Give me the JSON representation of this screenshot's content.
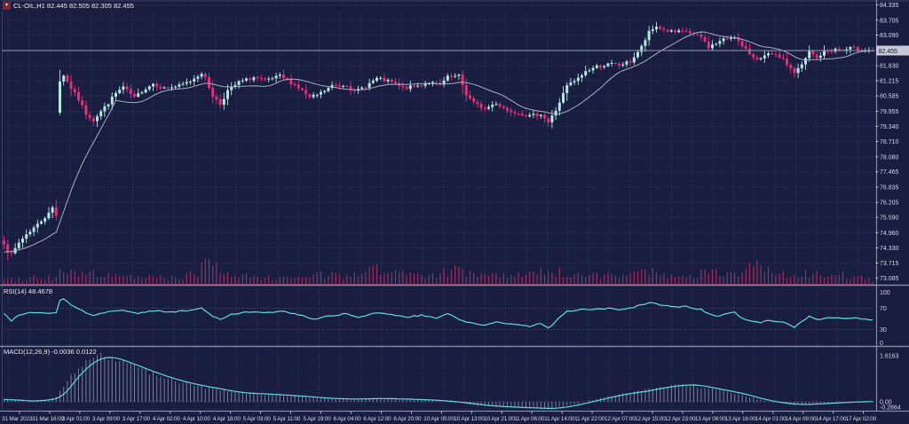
{
  "header": {
    "marker": "▼",
    "title": "CL-OIL,H1 82.445 82.505 82.305 82.455"
  },
  "indicators": {
    "rsi": {
      "label": "RSI(14) 48.4678",
      "current": 48.4678,
      "levels": [
        100,
        70,
        30,
        0
      ]
    },
    "macd": {
      "label": "MACD(12,26,9) -0.0036 0.0122",
      "current_main": -0.0036,
      "current_signal": 0.0122
    }
  },
  "axes": {
    "price_ticks": [
      "84.335",
      "83.705",
      "83.090",
      "81.830",
      "81.215",
      "80.585",
      "79.955",
      "79.340",
      "78.710",
      "78.080",
      "77.465",
      "76.835",
      "76.205",
      "75.590",
      "74.960",
      "74.330",
      "73.715",
      "73.085"
    ],
    "grid_levels": [
      84.335,
      83.705,
      83.09,
      82.475,
      81.83,
      81.215,
      80.585,
      79.955,
      79.34,
      78.71,
      78.08,
      77.465,
      76.835,
      76.205,
      75.59,
      74.96,
      74.33,
      73.715,
      73.085
    ],
    "current_price": "82.455",
    "rsi_ticks": [
      "100",
      "70",
      "30",
      "0"
    ],
    "macd_ticks": [
      "1.6163",
      "0.00",
      "-0.2864"
    ],
    "time_labels": [
      "31 Mar 2023",
      "31 Mar 16:00",
      "3 Apr 01:00",
      "3 Apr 09:00",
      "3 Apr 17:00",
      "4 Apr 02:00",
      "4 Apr 10:00",
      "4 Apr 18:00",
      "5 Apr 03:00",
      "5 Apr 11:00",
      "5 Apr 19:00",
      "6 Apr 04:00",
      "6 Apr 12:00",
      "6 Apr 20:00",
      "10 Apr 05:00",
      "10 Apr 13:00",
      "10 Apr 21:00",
      "11 Apr 06:00",
      "11 Apr 14:00",
      "11 Apr 22:00",
      "12 Apr 07:00",
      "12 Apr 15:00",
      "12 Apr 23:00",
      "13 Apr 08:00",
      "13 Apr 16:00",
      "14 Apr 01:00",
      "14 Apr 09:00",
      "14 Apr 17:00",
      "17 Apr 02:00"
    ]
  },
  "colors": {
    "background": "#191d3f",
    "grid": "#363c6b",
    "level_line": "#4a5180",
    "bull": "#b4e6e2",
    "bear": "#e62e78",
    "ma": "#a7aec2",
    "bid_line": "#8e96aa",
    "volume": "#92305f",
    "indicator_line": "#62d9e2",
    "histogram": "#a9aed2",
    "separator": "#838aa4",
    "axis_text": "#d4d9e8",
    "tag_bg": "#c6cad6",
    "tag_text": "#10142e",
    "border": "#3a4068"
  },
  "chart_data": [
    {
      "type": "candlestick",
      "pane": "main",
      "symbol": "CL-OIL",
      "timeframe": "H1",
      "ohlc_current": {
        "open": "82.445",
        "high": "82.505",
        "low": "82.305",
        "close": "82.455"
      },
      "bars": 234,
      "price_range": [
        73.085,
        84.335
      ],
      "bid_price": 82.455,
      "ma_period": 16,
      "seed": 7,
      "close_jitter": 0.07,
      "wick_base": 0.1,
      "gaps": [
        {
          "index": 15,
          "open": 79.9
        }
      ],
      "close_waypoints": [
        [
          0,
          74.55
        ],
        [
          1,
          74.2
        ],
        [
          2,
          74.05
        ],
        [
          3,
          74.3
        ],
        [
          4,
          74.55
        ],
        [
          6,
          74.9
        ],
        [
          9,
          75.3
        ],
        [
          12,
          75.75
        ],
        [
          13,
          76.0
        ],
        [
          14,
          75.7
        ],
        [
          15,
          81.2
        ],
        [
          16,
          81.45
        ],
        [
          18,
          80.9
        ],
        [
          20,
          80.45
        ],
        [
          22,
          79.85
        ],
        [
          24,
          79.6
        ],
        [
          26,
          79.95
        ],
        [
          28,
          80.3
        ],
        [
          30,
          80.7
        ],
        [
          32,
          80.95
        ],
        [
          35,
          80.5
        ],
        [
          37,
          80.8
        ],
        [
          40,
          81.1
        ],
        [
          43,
          80.9
        ],
        [
          47,
          81.0
        ],
        [
          50,
          81.2
        ],
        [
          53,
          81.55
        ],
        [
          54,
          81.3
        ],
        [
          56,
          80.6
        ],
        [
          58,
          80.25
        ],
        [
          60,
          80.8
        ],
        [
          63,
          81.15
        ],
        [
          67,
          81.35
        ],
        [
          70,
          81.2
        ],
        [
          74,
          81.4
        ],
        [
          78,
          81.05
        ],
        [
          80,
          80.8
        ],
        [
          82,
          80.5
        ],
        [
          85,
          80.7
        ],
        [
          88,
          81.0
        ],
        [
          92,
          81.05
        ],
        [
          94,
          80.75
        ],
        [
          97,
          81.0
        ],
        [
          100,
          81.3
        ],
        [
          104,
          81.15
        ],
        [
          107,
          80.9
        ],
        [
          111,
          81.0
        ],
        [
          114,
          81.15
        ],
        [
          117,
          81.05
        ],
        [
          119,
          81.35
        ],
        [
          122,
          81.4
        ],
        [
          124,
          80.65
        ],
        [
          126,
          80.3
        ],
        [
          129,
          80.05
        ],
        [
          132,
          80.3
        ],
        [
          135,
          80.0
        ],
        [
          138,
          79.9
        ],
        [
          141,
          79.75
        ],
        [
          144,
          79.85
        ],
        [
          146,
          79.5
        ],
        [
          148,
          80.0
        ],
        [
          151,
          81.0
        ],
        [
          154,
          81.3
        ],
        [
          156,
          81.6
        ],
        [
          159,
          81.8
        ],
        [
          163,
          81.9
        ],
        [
          165,
          81.85
        ],
        [
          168,
          82.0
        ],
        [
          171,
          82.6
        ],
        [
          173,
          83.2
        ],
        [
          175,
          83.45
        ],
        [
          177,
          83.3
        ],
        [
          180,
          83.2
        ],
        [
          183,
          83.25
        ],
        [
          185,
          83.1
        ],
        [
          187,
          83.0
        ],
        [
          189,
          82.6
        ],
        [
          191,
          82.75
        ],
        [
          193,
          82.9
        ],
        [
          196,
          83.05
        ],
        [
          198,
          82.6
        ],
        [
          201,
          82.2
        ],
        [
          203,
          82.1
        ],
        [
          205,
          82.3
        ],
        [
          208,
          82.2
        ],
        [
          210,
          81.9
        ],
        [
          212,
          81.55
        ],
        [
          214,
          81.85
        ],
        [
          216,
          82.4
        ],
        [
          218,
          82.15
        ],
        [
          220,
          82.4
        ],
        [
          223,
          82.5
        ],
        [
          225,
          82.45
        ],
        [
          227,
          82.55
        ],
        [
          230,
          82.5
        ],
        [
          233,
          82.455
        ]
      ],
      "volume_waypoints": [
        [
          0,
          0.15
        ],
        [
          5,
          0.2
        ],
        [
          10,
          0.3
        ],
        [
          14,
          0.25
        ],
        [
          15,
          0.55
        ],
        [
          17,
          0.5
        ],
        [
          20,
          0.4
        ],
        [
          24,
          0.45
        ],
        [
          28,
          0.35
        ],
        [
          32,
          0.3
        ],
        [
          36,
          0.25
        ],
        [
          40,
          0.3
        ],
        [
          44,
          0.25
        ],
        [
          48,
          0.3
        ],
        [
          52,
          0.5
        ],
        [
          54,
          1.0
        ],
        [
          56,
          0.7
        ],
        [
          58,
          0.5
        ],
        [
          62,
          0.35
        ],
        [
          66,
          0.3
        ],
        [
          70,
          0.25
        ],
        [
          75,
          0.2
        ],
        [
          80,
          0.3
        ],
        [
          85,
          0.35
        ],
        [
          90,
          0.3
        ],
        [
          95,
          0.35
        ],
        [
          100,
          0.6
        ],
        [
          103,
          0.5
        ],
        [
          107,
          0.4
        ],
        [
          110,
          0.35
        ],
        [
          115,
          0.3
        ],
        [
          119,
          0.5
        ],
        [
          122,
          0.55
        ],
        [
          125,
          0.45
        ],
        [
          128,
          0.4
        ],
        [
          132,
          0.45
        ],
        [
          136,
          0.35
        ],
        [
          140,
          0.3
        ],
        [
          143,
          0.45
        ],
        [
          146,
          0.5
        ],
        [
          150,
          0.45
        ],
        [
          154,
          0.35
        ],
        [
          158,
          0.3
        ],
        [
          162,
          0.35
        ],
        [
          166,
          0.3
        ],
        [
          170,
          0.5
        ],
        [
          173,
          0.55
        ],
        [
          176,
          0.45
        ],
        [
          180,
          0.35
        ],
        [
          184,
          0.3
        ],
        [
          188,
          0.45
        ],
        [
          191,
          0.5
        ],
        [
          194,
          0.4
        ],
        [
          198,
          0.45
        ],
        [
          200,
          0.85
        ],
        [
          202,
          0.7
        ],
        [
          204,
          0.5
        ],
        [
          208,
          0.35
        ],
        [
          212,
          0.4
        ],
        [
          216,
          0.45
        ],
        [
          219,
          0.5
        ],
        [
          222,
          0.4
        ],
        [
          226,
          0.3
        ],
        [
          230,
          0.25
        ],
        [
          233,
          0.2
        ]
      ]
    },
    {
      "type": "line",
      "pane": "rsi",
      "range": [
        0,
        100
      ],
      "levels": [
        70,
        30
      ],
      "jitter": 1.2,
      "waypoints": [
        [
          0,
          60
        ],
        [
          2,
          47
        ],
        [
          4,
          58
        ],
        [
          8,
          62
        ],
        [
          12,
          60
        ],
        [
          14,
          62
        ],
        [
          15,
          85
        ],
        [
          16,
          88
        ],
        [
          18,
          76
        ],
        [
          20,
          70
        ],
        [
          22,
          62
        ],
        [
          24,
          56
        ],
        [
          27,
          62
        ],
        [
          30,
          66
        ],
        [
          33,
          65
        ],
        [
          36,
          61
        ],
        [
          40,
          65
        ],
        [
          45,
          63
        ],
        [
          50,
          66
        ],
        [
          53,
          70
        ],
        [
          56,
          55
        ],
        [
          58,
          49
        ],
        [
          61,
          58
        ],
        [
          65,
          63
        ],
        [
          70,
          62
        ],
        [
          75,
          64
        ],
        [
          80,
          56
        ],
        [
          83,
          49
        ],
        [
          87,
          55
        ],
        [
          92,
          60
        ],
        [
          95,
          53
        ],
        [
          100,
          62
        ],
        [
          104,
          58
        ],
        [
          108,
          53
        ],
        [
          112,
          57
        ],
        [
          116,
          52
        ],
        [
          119,
          60
        ],
        [
          123,
          46
        ],
        [
          126,
          41
        ],
        [
          129,
          37
        ],
        [
          132,
          45
        ],
        [
          135,
          41
        ],
        [
          138,
          39
        ],
        [
          141,
          36
        ],
        [
          144,
          41
        ],
        [
          146,
          32
        ],
        [
          148,
          46
        ],
        [
          151,
          64
        ],
        [
          154,
          67
        ],
        [
          157,
          68
        ],
        [
          160,
          69
        ],
        [
          163,
          70
        ],
        [
          165,
          68
        ],
        [
          168,
          70
        ],
        [
          171,
          77
        ],
        [
          173,
          80
        ],
        [
          175,
          79
        ],
        [
          177,
          75
        ],
        [
          180,
          72
        ],
        [
          183,
          74
        ],
        [
          185,
          70
        ],
        [
          187,
          68
        ],
        [
          189,
          59
        ],
        [
          191,
          55
        ],
        [
          194,
          60
        ],
        [
          196,
          63
        ],
        [
          198,
          51
        ],
        [
          201,
          45
        ],
        [
          203,
          43
        ],
        [
          205,
          48
        ],
        [
          208,
          45
        ],
        [
          210,
          42
        ],
        [
          212,
          35
        ],
        [
          214,
          45
        ],
        [
          216,
          55
        ],
        [
          218,
          48
        ],
        [
          220,
          52
        ],
        [
          223,
          53
        ],
        [
          225,
          50
        ],
        [
          227,
          52
        ],
        [
          230,
          50
        ],
        [
          233,
          48.5
        ]
      ]
    },
    {
      "type": "line+histogram",
      "pane": "macd",
      "scale_max": 1.6163,
      "scale_min": -0.2864,
      "signal_smoothing": 5,
      "waypoints": [
        [
          0,
          0.08
        ],
        [
          3,
          0.05
        ],
        [
          6,
          0.02
        ],
        [
          9,
          0.05
        ],
        [
          12,
          0.1
        ],
        [
          14,
          0.18
        ],
        [
          16,
          0.55
        ],
        [
          18,
          0.9
        ],
        [
          20,
          1.15
        ],
        [
          22,
          1.38
        ],
        [
          24,
          1.52
        ],
        [
          26,
          1.58
        ],
        [
          28,
          1.55
        ],
        [
          30,
          1.47
        ],
        [
          33,
          1.32
        ],
        [
          36,
          1.17
        ],
        [
          40,
          0.97
        ],
        [
          44,
          0.8
        ],
        [
          48,
          0.66
        ],
        [
          52,
          0.55
        ],
        [
          56,
          0.46
        ],
        [
          60,
          0.36
        ],
        [
          64,
          0.3
        ],
        [
          68,
          0.28
        ],
        [
          72,
          0.25
        ],
        [
          76,
          0.22
        ],
        [
          80,
          0.18
        ],
        [
          85,
          0.13
        ],
        [
          90,
          0.1
        ],
        [
          95,
          0.1
        ],
        [
          100,
          0.12
        ],
        [
          105,
          0.1
        ],
        [
          110,
          0.08
        ],
        [
          115,
          0.05
        ],
        [
          118,
          0.02
        ],
        [
          122,
          -0.03
        ],
        [
          126,
          -0.1
        ],
        [
          130,
          -0.15
        ],
        [
          134,
          -0.18
        ],
        [
          138,
          -0.2
        ],
        [
          142,
          -0.22
        ],
        [
          146,
          -0.24
        ],
        [
          150,
          -0.16
        ],
        [
          154,
          -0.06
        ],
        [
          158,
          0.07
        ],
        [
          162,
          0.19
        ],
        [
          166,
          0.29
        ],
        [
          170,
          0.36
        ],
        [
          174,
          0.46
        ],
        [
          178,
          0.55
        ],
        [
          182,
          0.6
        ],
        [
          185,
          0.58
        ],
        [
          188,
          0.5
        ],
        [
          192,
          0.4
        ],
        [
          196,
          0.3
        ],
        [
          200,
          0.16
        ],
        [
          204,
          0.03
        ],
        [
          208,
          -0.05
        ],
        [
          212,
          -0.1
        ],
        [
          216,
          -0.08
        ],
        [
          220,
          -0.05
        ],
        [
          224,
          -0.02
        ],
        [
          228,
          0
        ],
        [
          233,
          0.012
        ]
      ]
    }
  ]
}
